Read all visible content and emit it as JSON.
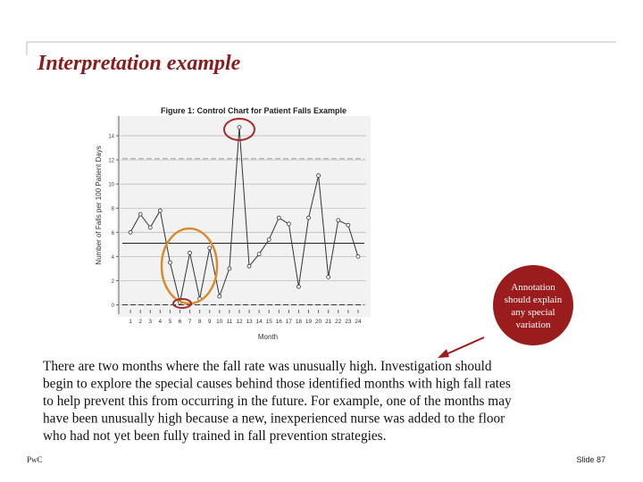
{
  "title": "Interpretation example",
  "chart_data": {
    "type": "line",
    "title": "Figure 1: Control Chart for Patient Falls Example",
    "y_label": "Number of Falls per 100 Patient Days",
    "x_label": "Month",
    "x": [
      1,
      2,
      3,
      4,
      5,
      6,
      7,
      8,
      9,
      10,
      11,
      12,
      13,
      14,
      15,
      16,
      17,
      18,
      19,
      20,
      21,
      22,
      23,
      24
    ],
    "series": [
      {
        "name": "Falls",
        "color": "#333333",
        "values": [
          6.0,
          7.5,
          6.4,
          7.8,
          3.5,
          0.2,
          4.3,
          0.5,
          4.7,
          0.7,
          3.0,
          14.7,
          3.2,
          4.2,
          5.4,
          7.2,
          6.7,
          1.5,
          7.2,
          10.7,
          2.3,
          7.0,
          6.6,
          4.0
        ]
      }
    ],
    "center_line": 5.1,
    "ucl": 12.1,
    "lcl": 0,
    "xlim": [
      0,
      25
    ],
    "xticks": [
      1,
      2,
      3,
      4,
      5,
      6,
      7,
      8,
      9,
      10,
      11,
      12,
      13,
      14,
      15,
      16,
      17,
      18,
      19,
      20,
      21,
      22,
      23,
      24
    ],
    "ylim": [
      -1,
      16
    ],
    "yticks": [
      0,
      2,
      4,
      6,
      8,
      10,
      12,
      14
    ],
    "grid": true
  },
  "annotation": [
    "Annotation",
    "should explain",
    "any special",
    "variation"
  ],
  "body": [
    "There are two months where the fall rate was unusually high. Investigation should",
    "begin to explore the special causes behind those identified months with high fall rates",
    "to help prevent this from occurring in the future.  For example, one of the months may",
    "have been unusually high because  a new, inexperienced nurse was added to the floor",
    "who had not yet been fully trained in fall prevention strategies."
  ],
  "footer": {
    "left": "PwC",
    "right": "Slide 87"
  }
}
